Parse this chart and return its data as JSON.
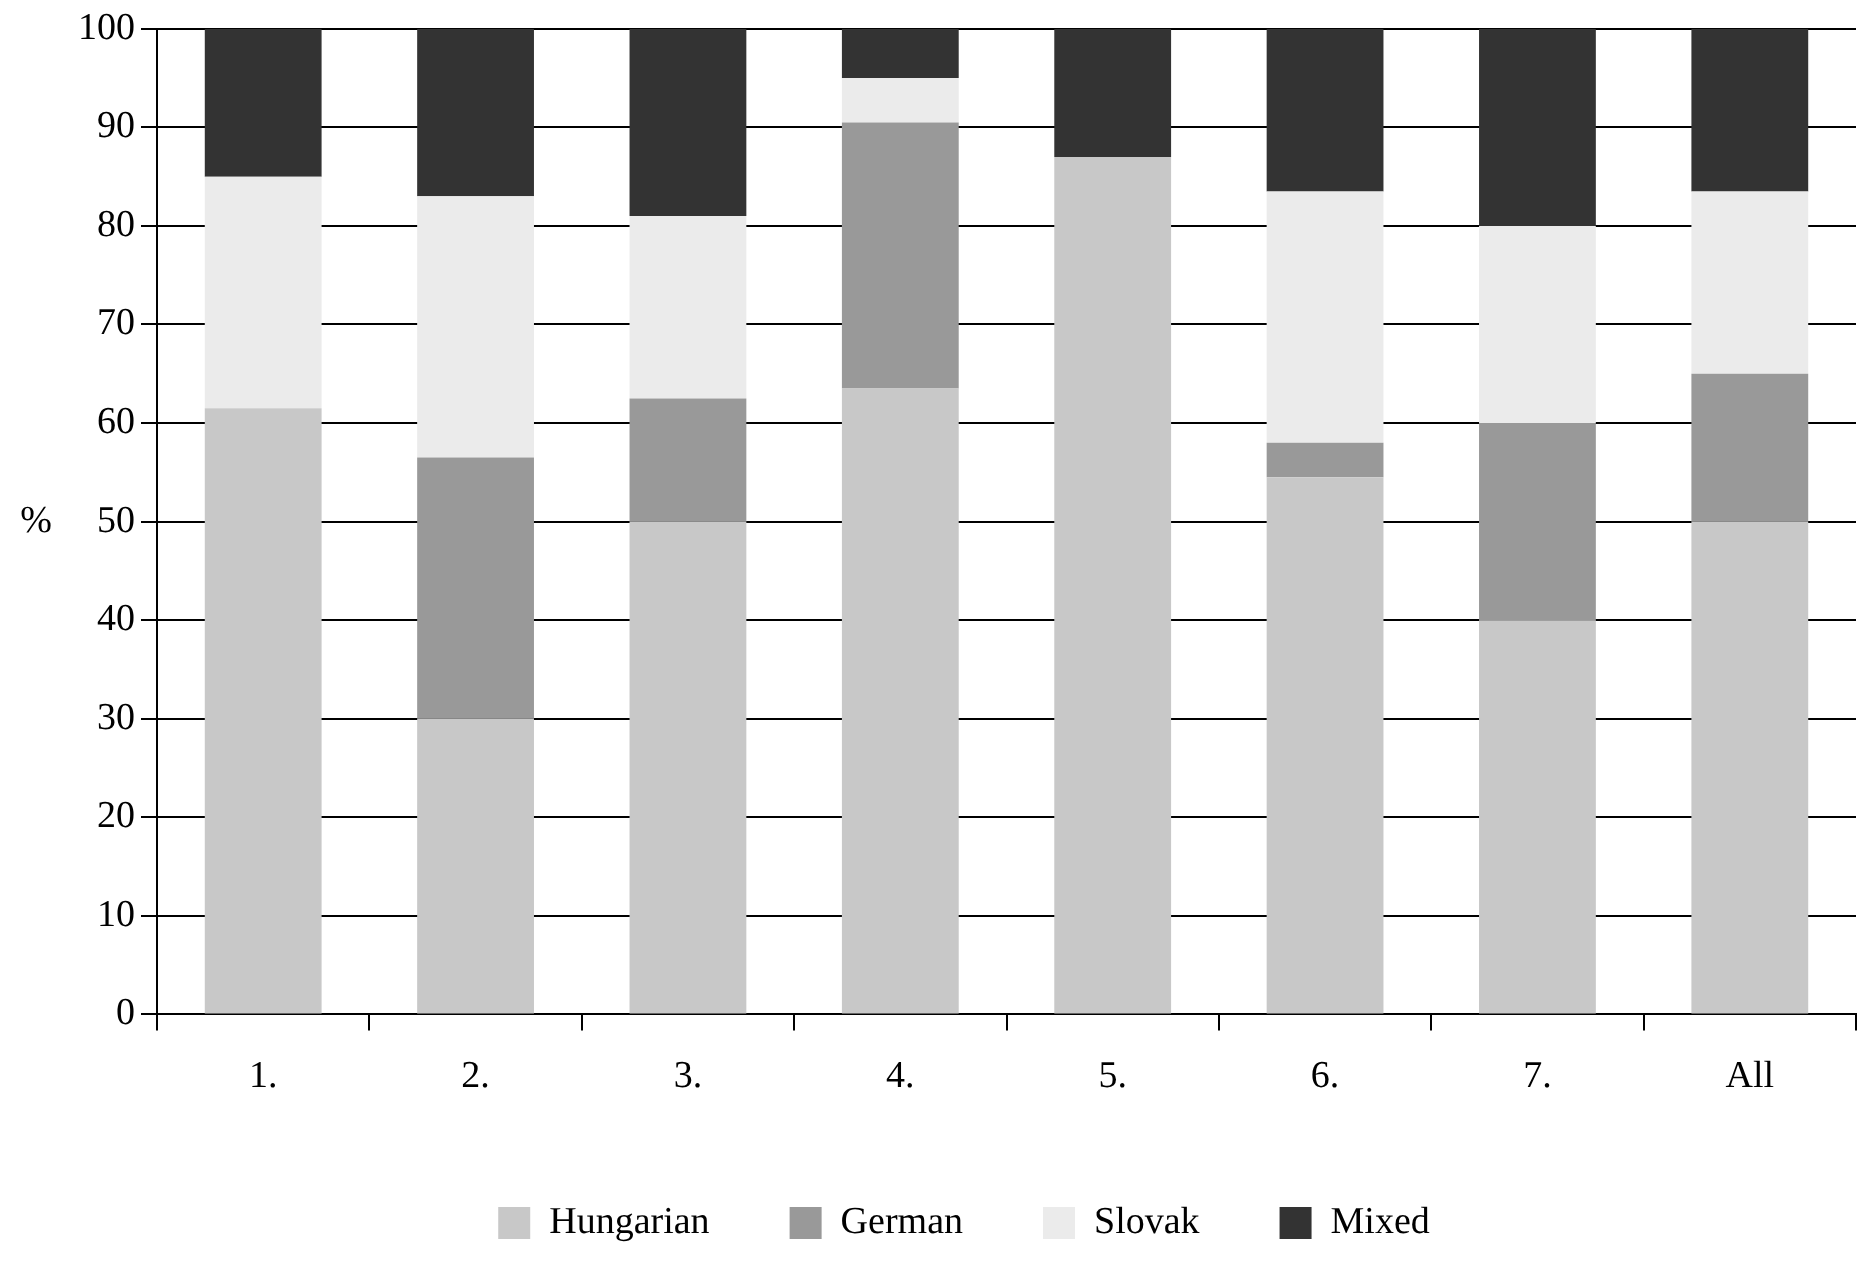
{
  "chart_data": {
    "type": "bar",
    "stacked": true,
    "ylabel": "%",
    "categories": [
      "1.",
      "2.",
      "3.",
      "4.",
      "5.",
      "6.",
      "7.",
      "All"
    ],
    "series": [
      {
        "name": "Hungarian",
        "color": "#c8c8c8",
        "values": [
          61.5,
          30,
          50,
          63.5,
          87,
          54.5,
          40,
          50
        ]
      },
      {
        "name": "German",
        "color": "#999999",
        "values": [
          0,
          26.5,
          12.5,
          27,
          0,
          3.5,
          20,
          15
        ]
      },
      {
        "name": "Slovak",
        "color": "#ebebeb",
        "values": [
          23.5,
          26.5,
          18.5,
          4.5,
          0,
          25.5,
          20,
          18.5
        ]
      },
      {
        "name": "Mixed",
        "color": "#333333",
        "values": [
          15,
          17,
          19,
          5,
          13,
          16.5,
          20,
          16.5
        ]
      }
    ],
    "ylim": [
      0,
      100
    ],
    "yticks": [
      0,
      10,
      20,
      30,
      40,
      50,
      60,
      70,
      80,
      90,
      100
    ],
    "grid": "y",
    "legend": "bottom"
  }
}
